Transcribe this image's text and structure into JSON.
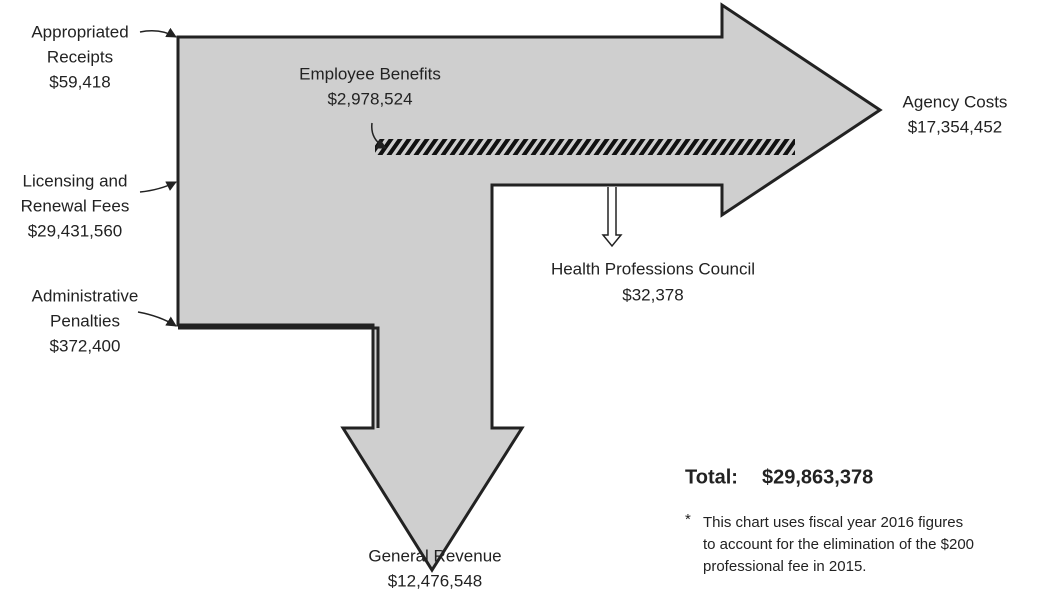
{
  "inputs": [
    {
      "lines": [
        "Appropriated",
        "Receipts"
      ],
      "amount": "$59,418"
    },
    {
      "lines": [
        "Licensing and",
        "Renewal Fees"
      ],
      "amount": "$29,431,560"
    },
    {
      "lines": [
        "Administrative",
        "Penalties"
      ],
      "amount": "$372,400"
    }
  ],
  "outputs": [
    {
      "lines": [
        "Employee Benefits"
      ],
      "amount": "$2,978,524"
    },
    {
      "lines": [
        "Agency Costs"
      ],
      "amount": "$17,354,452"
    },
    {
      "lines": [
        "Health Professions Council"
      ],
      "amount": "$32,378"
    },
    {
      "lines": [
        "General Revenue"
      ],
      "amount": "$12,476,548"
    }
  ],
  "total": {
    "label": "Total:",
    "amount": "$29,863,378"
  },
  "footnote": {
    "marker": "*",
    "lines": [
      "This chart uses fiscal year 2016 figures",
      "to account for the elimination of the $200",
      "professional fee in 2015."
    ]
  }
}
